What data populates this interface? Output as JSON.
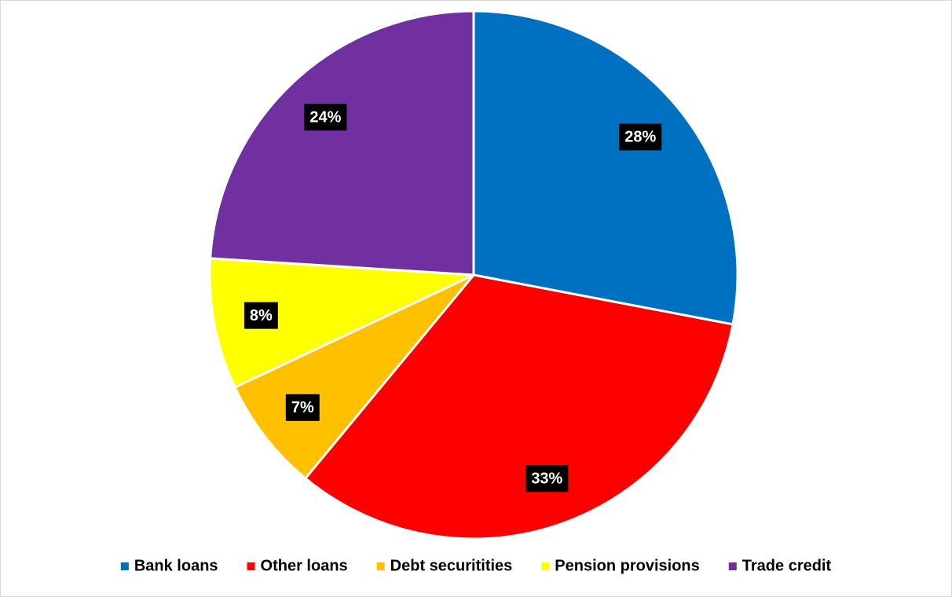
{
  "chart_data": {
    "type": "pie",
    "categories": [
      "Bank loans",
      "Other loans",
      "Debt securitities",
      "Pension provisions",
      "Trade credit"
    ],
    "values": [
      28,
      33,
      7,
      8,
      24
    ],
    "value_labels": [
      "28%",
      "33%",
      "7%",
      "8%",
      "24%"
    ],
    "colors": [
      "#0070c0",
      "#ff0000",
      "#ffc000",
      "#ffff00",
      "#7030a0"
    ],
    "legend": "bottom"
  }
}
